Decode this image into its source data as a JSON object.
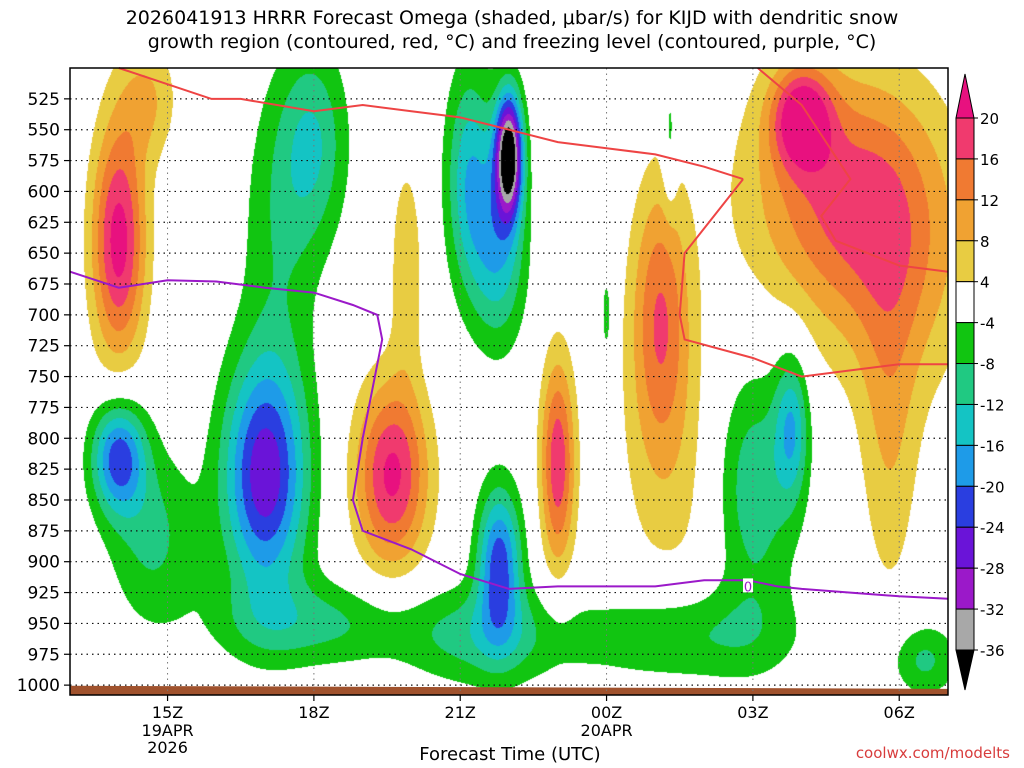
{
  "title_line1": "2026041913 HRRR Forecast Omega (shaded, μbar/s) for KIJD with dendritic snow",
  "title_line2": "growth region (contoured, red, °C) and freezing level (contoured, purple, °C)",
  "credit": "coolwx.com/modelts",
  "colors": {
    "dgz_contour": "#ee4444",
    "freezing_level": "#9b19c9",
    "ground": "#a0522d"
  },
  "chart_data": {
    "type": "heatmap",
    "x_axis_title": "Forecast Time (UTC)",
    "x_ticks": [
      {
        "label": "15Z",
        "sub": [
          "19APR",
          "2026"
        ],
        "hour": 15
      },
      {
        "label": "18Z",
        "sub": [],
        "hour": 18
      },
      {
        "label": "21Z",
        "sub": [],
        "hour": 21
      },
      {
        "label": "00Z",
        "sub": [
          "20APR"
        ],
        "hour": 24
      },
      {
        "label": "03Z",
        "sub": [],
        "hour": 27
      },
      {
        "label": "06Z",
        "sub": [],
        "hour": 30
      }
    ],
    "x_range_hours": [
      13,
      31
    ],
    "y_ticks": [
      525,
      550,
      575,
      600,
      625,
      650,
      675,
      700,
      725,
      750,
      775,
      800,
      825,
      850,
      875,
      900,
      925,
      950,
      975,
      1000
    ],
    "y_range_mb": [
      500,
      1008
    ],
    "grid": "dotted",
    "colorbar": {
      "labels": [
        "20",
        "16",
        "12",
        "8",
        "4",
        "-4",
        "-8",
        "-12",
        "-16",
        "-20",
        "-24",
        "-28",
        "-32",
        "-36"
      ],
      "bands": [
        {
          "lo": 16,
          "hi": 20,
          "color": "#f03a6e"
        },
        {
          "lo": 12,
          "hi": 16,
          "color": "#f07a32"
        },
        {
          "lo": 8,
          "hi": 12,
          "color": "#f0a232"
        },
        {
          "lo": 4,
          "hi": 8,
          "color": "#e8cc42"
        },
        {
          "lo": -4,
          "hi": 4,
          "color": "#ffffff"
        },
        {
          "lo": -8,
          "hi": -4,
          "color": "#11c511"
        },
        {
          "lo": -12,
          "hi": -8,
          "color": "#20c982"
        },
        {
          "lo": -16,
          "hi": -12,
          "color": "#14c4c4"
        },
        {
          "lo": -20,
          "hi": -16,
          "color": "#1e9be8"
        },
        {
          "lo": -24,
          "hi": -20,
          "color": "#2a3ee0"
        },
        {
          "lo": -28,
          "hi": -24,
          "color": "#6a14d8"
        },
        {
          "lo": -32,
          "hi": -28,
          "color": "#9b19c9"
        },
        {
          "lo": -36,
          "hi": -32,
          "color": "#a8a8a8"
        }
      ],
      "top_arrow_color": "#e8117f",
      "bottom_arrow_color": "#000000"
    },
    "omega_centers": [
      {
        "hour": 14.0,
        "mb": 640,
        "value": 22,
        "sx": 0.55,
        "sy": 95
      },
      {
        "hour": 14.6,
        "mb": 525,
        "value": 8,
        "sx": 0.6,
        "sy": 50
      },
      {
        "hour": 14.0,
        "mb": 815,
        "value": -22,
        "sx": 0.55,
        "sy": 45
      },
      {
        "hour": 14.7,
        "mb": 880,
        "value": -9,
        "sx": 0.9,
        "sy": 70
      },
      {
        "hour": 17.0,
        "mb": 830,
        "value": -27,
        "sx": 0.85,
        "sy": 95
      },
      {
        "hour": 17.3,
        "mb": 630,
        "value": -7,
        "sx": 0.8,
        "sy": 120
      },
      {
        "hour": 18.0,
        "mb": 950,
        "value": -9,
        "sx": 2.0,
        "sy": 35
      },
      {
        "hour": 18.0,
        "mb": 560,
        "value": -11,
        "sx": 0.7,
        "sy": 80
      },
      {
        "hour": 19.6,
        "mb": 830,
        "value": 21,
        "sx": 0.75,
        "sy": 75
      },
      {
        "hour": 19.9,
        "mb": 660,
        "value": 7,
        "sx": 0.35,
        "sy": 90
      },
      {
        "hour": 21.2,
        "mb": 590,
        "value": -15,
        "sx": 0.5,
        "sy": 90
      },
      {
        "hour": 22.0,
        "mb": 570,
        "value": -40,
        "sx": 0.28,
        "sy": 50
      },
      {
        "hour": 21.8,
        "mb": 650,
        "value": -14,
        "sx": 0.55,
        "sy": 75
      },
      {
        "hour": 21.8,
        "mb": 900,
        "value": -22,
        "sx": 0.45,
        "sy": 60
      },
      {
        "hour": 21.5,
        "mb": 960,
        "value": -10,
        "sx": 1.6,
        "sy": 40
      },
      {
        "hour": 23.0,
        "mb": 820,
        "value": 19,
        "sx": 0.35,
        "sy": 85
      },
      {
        "hour": 25.1,
        "mb": 700,
        "value": 15,
        "sx": 0.6,
        "sy": 110
      },
      {
        "hour": 25.5,
        "mb": 830,
        "value": 5,
        "sx": 1.3,
        "sy": 130
      },
      {
        "hour": 25.3,
        "mb": 560,
        "value": -7,
        "sx": 0.15,
        "sy": 55
      },
      {
        "hour": 24.0,
        "mb": 700,
        "value": -7,
        "sx": 0.1,
        "sy": 35
      },
      {
        "hour": 27.0,
        "mb": 840,
        "value": -12,
        "sx": 0.85,
        "sy": 100
      },
      {
        "hour": 25.6,
        "mb": 960,
        "value": -9,
        "sx": 2.2,
        "sy": 40
      },
      {
        "hour": 27.8,
        "mb": 790,
        "value": -14,
        "sx": 0.35,
        "sy": 60
      },
      {
        "hour": 28.0,
        "mb": 540,
        "value": 20,
        "sx": 0.6,
        "sy": 40
      },
      {
        "hour": 28.6,
        "mb": 600,
        "value": 14,
        "sx": 1.8,
        "sy": 100
      },
      {
        "hour": 30.0,
        "mb": 650,
        "value": 10,
        "sx": 1.5,
        "sy": 120
      },
      {
        "hour": 29.8,
        "mb": 800,
        "value": 7,
        "sx": 0.6,
        "sy": 140
      },
      {
        "hour": 30.5,
        "mb": 980,
        "value": -9,
        "sx": 0.7,
        "sy": 30
      }
    ],
    "dgz_contours": [
      {
        "points": [
          [
            14.0,
            500
          ],
          [
            15.9,
            525
          ],
          [
            16.5,
            525
          ],
          [
            18.0,
            535
          ],
          [
            19.0,
            530
          ],
          [
            20.0,
            535
          ],
          [
            21.0,
            540
          ],
          [
            22.0,
            550
          ],
          [
            23.0,
            560
          ],
          [
            24.0,
            565
          ],
          [
            25.0,
            570
          ],
          [
            26.0,
            580
          ],
          [
            26.8,
            590
          ]
        ]
      },
      {
        "points": [
          [
            26.8,
            590
          ],
          [
            25.6,
            650
          ],
          [
            25.5,
            700
          ],
          [
            25.6,
            720
          ],
          [
            27.0,
            735
          ],
          [
            28.0,
            750
          ],
          [
            29.0,
            745
          ],
          [
            30.0,
            740
          ],
          [
            31.0,
            740
          ]
        ]
      },
      {
        "points": [
          [
            27.1,
            500
          ],
          [
            28.0,
            530
          ],
          [
            29.0,
            590
          ],
          [
            28.4,
            620
          ],
          [
            28.7,
            640
          ],
          [
            30.0,
            660
          ],
          [
            31.0,
            665
          ]
        ]
      }
    ],
    "freezing_level": {
      "label": "0",
      "label_hour": 26.9,
      "label_mb": 920,
      "points": [
        [
          13.0,
          665
        ],
        [
          14.0,
          678
        ],
        [
          15.0,
          672
        ],
        [
          16.0,
          673
        ],
        [
          17.0,
          678
        ],
        [
          18.0,
          682
        ],
        [
          18.8,
          692
        ],
        [
          19.3,
          700
        ],
        [
          19.4,
          720
        ],
        [
          19.0,
          800
        ],
        [
          18.8,
          850
        ],
        [
          19.0,
          875
        ],
        [
          20.0,
          890
        ],
        [
          21.0,
          910
        ],
        [
          22.0,
          922
        ],
        [
          23.0,
          920
        ],
        [
          24.0,
          920
        ],
        [
          25.0,
          920
        ],
        [
          26.0,
          915
        ],
        [
          26.9,
          915
        ],
        [
          27.5,
          920
        ],
        [
          28.0,
          922
        ],
        [
          29.0,
          925
        ],
        [
          30.0,
          928
        ],
        [
          31.0,
          930
        ]
      ]
    }
  }
}
